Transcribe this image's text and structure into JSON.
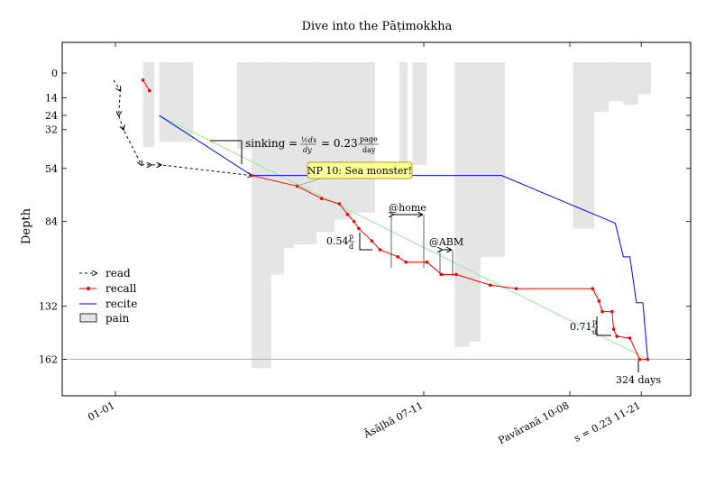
{
  "chart_data": {
    "type": "line",
    "title": "Dive into the Pāṭimokkha",
    "ylabel": "Depth",
    "xlabel": "",
    "ylim": [
      -20,
      183
    ],
    "xlim": [
      -10,
      340
    ],
    "y_reversed": true,
    "grid": false,
    "legend_position": "bottom-left",
    "y_ticks": [
      0,
      14,
      24,
      32,
      54,
      84,
      132,
      162
    ],
    "x_ticks": [
      {
        "x": 0,
        "label": "01-01"
      },
      {
        "x": 190,
        "label": "Āsāḷhā 07-11"
      },
      {
        "x": 280,
        "label": "Pavāranā 10-08"
      },
      {
        "x": 324,
        "label": "s = 0.23 11-21"
      }
    ],
    "legend": [
      {
        "name": "read",
        "color": "#000000",
        "style": "dashed-arrow"
      },
      {
        "name": "recall",
        "color": "#ff0000",
        "style": "line-dot"
      },
      {
        "name": "recite",
        "color": "#0000ff",
        "style": "line"
      },
      {
        "name": "pain",
        "color": "#e5e5e5",
        "style": "area"
      }
    ],
    "colors": {
      "read": "#000000",
      "recall": "#ff0000",
      "recite": "#0000ff",
      "pain": "#e5e5e5",
      "trend": "#90ee90",
      "reference": "#999999",
      "callout_bg": "#ffff99",
      "callout_border": "#b8a000"
    },
    "series": [
      {
        "name": "read",
        "points": [
          [
            -1,
            4
          ],
          [
            3,
            10
          ],
          [
            2,
            24
          ],
          [
            5,
            32
          ],
          [
            16,
            52
          ],
          [
            22,
            52
          ],
          [
            28,
            52
          ],
          [
            84,
            58
          ]
        ]
      },
      {
        "name": "recall",
        "points": [
          [
            17,
            4
          ],
          [
            21,
            10
          ],
          [
            84,
            58
          ],
          [
            112,
            64
          ],
          [
            127,
            71
          ],
          [
            138,
            74
          ],
          [
            143,
            80
          ],
          [
            147,
            84
          ],
          [
            150,
            88
          ],
          [
            158,
            95
          ],
          [
            163,
            100
          ],
          [
            174,
            104
          ],
          [
            179,
            107
          ],
          [
            192,
            107
          ],
          [
            201,
            114
          ],
          [
            210,
            114
          ],
          [
            231,
            120
          ],
          [
            247,
            122
          ],
          [
            294,
            122
          ],
          [
            298,
            129
          ],
          [
            300,
            135
          ],
          [
            306,
            135
          ],
          [
            307,
            145
          ],
          [
            309,
            149
          ],
          [
            317,
            150
          ],
          [
            323,
            162
          ],
          [
            328,
            162
          ]
        ]
      },
      {
        "name": "recite",
        "points": [
          [
            27,
            24
          ],
          [
            84,
            58
          ],
          [
            238,
            58
          ],
          [
            308,
            85
          ],
          [
            313,
            104
          ],
          [
            317,
            104
          ],
          [
            321,
            130
          ],
          [
            325,
            130
          ],
          [
            328,
            162
          ]
        ]
      },
      {
        "name": "trend",
        "points": [
          [
            27,
            24
          ],
          [
            328,
            162
          ]
        ]
      },
      {
        "name": "pain",
        "bars": [
          [
            17,
            24,
            0,
            42
          ],
          [
            21,
            24,
            0,
            38
          ],
          [
            27,
            48,
            0,
            39
          ],
          [
            75,
            84,
            0,
            43
          ],
          [
            84,
            96,
            0,
            167
          ],
          [
            96,
            104,
            0,
            114
          ],
          [
            104,
            110,
            0,
            99
          ],
          [
            110,
            124,
            0,
            97
          ],
          [
            124,
            135,
            0,
            90
          ],
          [
            135,
            146,
            0,
            83
          ],
          [
            146,
            160,
            0,
            79
          ],
          [
            175,
            180,
            0,
            52
          ],
          [
            183,
            192,
            0,
            52
          ],
          [
            209,
            218,
            0,
            155
          ],
          [
            218,
            225,
            0,
            152
          ],
          [
            225,
            240,
            0,
            104
          ],
          [
            282,
            295,
            0,
            88
          ],
          [
            295,
            304,
            0,
            22
          ],
          [
            304,
            307,
            0,
            16
          ],
          [
            307,
            313,
            0,
            16
          ],
          [
            313,
            322,
            0,
            18
          ],
          [
            322,
            330,
            0,
            12
          ]
        ]
      }
    ],
    "reference_line": {
      "y": 162
    },
    "annotations": [
      {
        "id": "slope1",
        "label": "sinking = ½dx/dy = 0.23 page/day",
        "prefix": "sinking ="
      },
      {
        "id": "callout",
        "text": "NP 10: Sea monster!"
      },
      {
        "id": "home",
        "text": "@home",
        "from": 171,
        "to": 190
      },
      {
        "id": "abm",
        "text": "@ABM",
        "from": 201,
        "to": 209
      },
      {
        "id": "slope2",
        "text": "0.54"
      },
      {
        "id": "slope3",
        "text": "0.71"
      },
      {
        "id": "days",
        "text": "324 days"
      }
    ]
  }
}
